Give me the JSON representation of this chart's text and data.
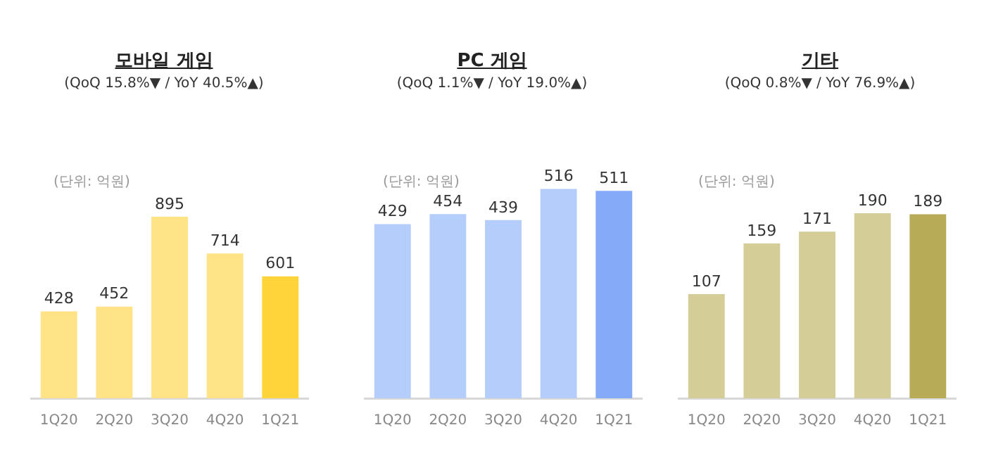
{
  "chart_data": [
    {
      "type": "bar",
      "title": "모바일 게임",
      "subtitle": "(QoQ 15.8%▼ / YoY 40.5%▲)",
      "annotations": [
        "(단위: 억원)"
      ],
      "categories": [
        "1Q20",
        "2Q20",
        "3Q20",
        "4Q20",
        "1Q21"
      ],
      "values": [
        428,
        452,
        895,
        714,
        601
      ],
      "colors": [
        "#ffe386",
        "#ffe386",
        "#ffe386",
        "#ffe386",
        "#ffd43a"
      ],
      "data_labels": true,
      "tick_labels": "x"
    },
    {
      "type": "bar",
      "title": "PC 게임",
      "subtitle": "(QoQ 1.1%▼ / YoY 19.0%▲)",
      "annotations": [
        "(단위: 억원)"
      ],
      "categories": [
        "1Q20",
        "2Q20",
        "3Q20",
        "4Q20",
        "1Q21"
      ],
      "values": [
        429,
        454,
        439,
        516,
        511
      ],
      "colors": [
        "#b4cdfb",
        "#b4cdfb",
        "#b4cdfb",
        "#b4cdfb",
        "#84aaf8"
      ],
      "data_labels": true,
      "tick_labels": "x"
    },
    {
      "type": "bar",
      "title": "기타",
      "subtitle": "(QoQ 0.8%▼ / YoY 76.9%▲)",
      "annotations": [
        "(단위: 억원)"
      ],
      "categories": [
        "1Q20",
        "2Q20",
        "3Q20",
        "4Q20",
        "1Q21"
      ],
      "values": [
        107,
        159,
        171,
        190,
        189
      ],
      "colors": [
        "#d5cd98",
        "#d5cd98",
        "#d5cd98",
        "#d5cd98",
        "#b7ab58"
      ],
      "data_labels": true,
      "tick_labels": "x"
    }
  ]
}
